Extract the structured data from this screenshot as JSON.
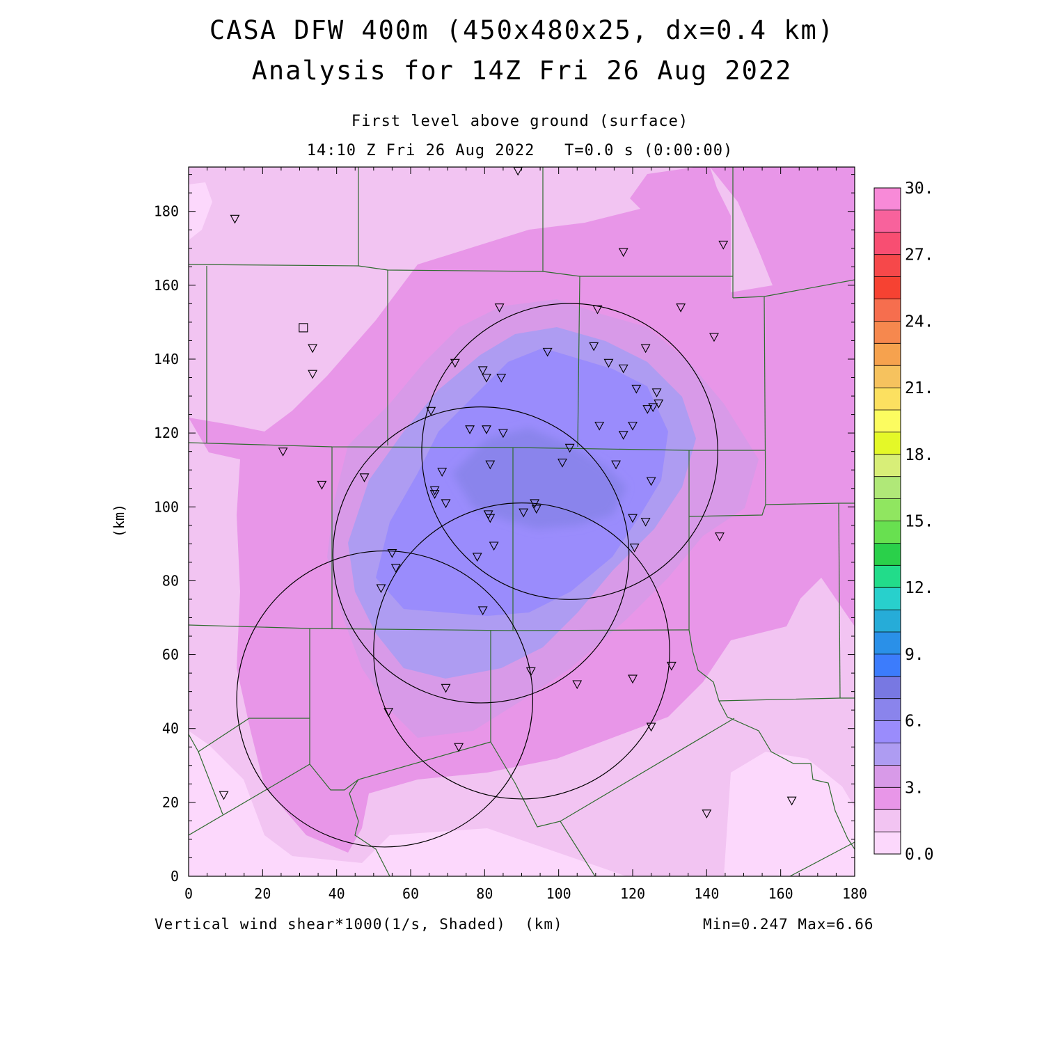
{
  "title": {
    "line1": "CASA DFW 400m (450x480x25, dx=0.4 km)",
    "line2": "Analysis for 14Z Fri 26 Aug 2022"
  },
  "subtitle": {
    "line1": "First level above ground (surface)",
    "line2": "14:10 Z Fri 26 Aug 2022   T=0.0 s (0:00:00)"
  },
  "footer": {
    "field": "Vertical wind shear*1000(1/s, Shaded)  (km)",
    "range": "Min=0.247 Max=6.66"
  },
  "axes": {
    "ylabel": "(km)",
    "x_ticks": [
      "0",
      "20",
      "40",
      "60",
      "80",
      "100",
      "120",
      "140",
      "160",
      "180"
    ],
    "y_ticks": [
      "0",
      "20",
      "40",
      "60",
      "80",
      "100",
      "120",
      "140",
      "160",
      "180"
    ],
    "xlim": [
      0,
      180
    ],
    "ylim": [
      0,
      192
    ]
  },
  "colorbar": {
    "labels": [
      "0.0",
      "3.",
      "6.",
      "9.",
      "12.",
      "15.",
      "18.",
      "21.",
      "24.",
      "27.",
      "30."
    ],
    "levels": [
      0,
      1,
      2,
      3,
      4,
      5,
      6,
      7,
      8,
      9,
      10,
      11,
      12,
      13,
      14,
      15,
      16,
      17,
      18,
      19,
      20,
      21,
      22,
      23,
      24,
      25,
      26,
      27,
      28,
      29,
      30
    ],
    "colors": [
      "#fcd8fc",
      "#f2c4f2",
      "#e896e8",
      "#d89ae8",
      "#ae9cf2",
      "#9a8cfc",
      "#8a84ec",
      "#7878e2",
      "#3c7cfc",
      "#2a90e8",
      "#26acd8",
      "#28d0cc",
      "#22dc8a",
      "#2ad04a",
      "#68e050",
      "#90e660",
      "#b0e878",
      "#d8ee78",
      "#e4f828",
      "#fcfc60",
      "#fce060",
      "#f6c25e",
      "#f6a24e",
      "#f6884e",
      "#f66e4e",
      "#f64232",
      "#f6484a",
      "#f84e72",
      "#f8629c",
      "#f88ad8"
    ]
  },
  "map": {
    "radar_sites": [
      {
        "x": 103,
        "y": 115,
        "r": 40
      },
      {
        "x": 79,
        "y": 87,
        "r": 40
      },
      {
        "x": 90,
        "y": 61,
        "r": 40
      },
      {
        "x": 53,
        "y": 48,
        "r": 40
      }
    ],
    "station_square": {
      "x": 31,
      "y": 148.5
    },
    "stations": [
      [
        12.5,
        178
      ],
      [
        89,
        191
      ],
      [
        117.5,
        169
      ],
      [
        144.5,
        171
      ],
      [
        84,
        154
      ],
      [
        110.5,
        153.5
      ],
      [
        133,
        154
      ],
      [
        142,
        146
      ],
      [
        33.5,
        143
      ],
      [
        33.5,
        136
      ],
      [
        72,
        139
      ],
      [
        79.5,
        137
      ],
      [
        80.5,
        135
      ],
      [
        84.5,
        135
      ],
      [
        97,
        142
      ],
      [
        109.5,
        143.5
      ],
      [
        113.5,
        139
      ],
      [
        117.5,
        137.5
      ],
      [
        123.5,
        143
      ],
      [
        121,
        132
      ],
      [
        126.5,
        131
      ],
      [
        127,
        128
      ],
      [
        125.5,
        127
      ],
      [
        124,
        126.5
      ],
      [
        65.5,
        126
      ],
      [
        76,
        121
      ],
      [
        80.5,
        121
      ],
      [
        85,
        120
      ],
      [
        111,
        122
      ],
      [
        117.5,
        119.5
      ],
      [
        120,
        122
      ],
      [
        25.5,
        115
      ],
      [
        103,
        116
      ],
      [
        101,
        112
      ],
      [
        81.5,
        111.5
      ],
      [
        115.5,
        111.5
      ],
      [
        125,
        107
      ],
      [
        36,
        106
      ],
      [
        47.5,
        108
      ],
      [
        68.5,
        109.5
      ],
      [
        66.5,
        104.5
      ],
      [
        66.5,
        103.5
      ],
      [
        69.5,
        101
      ],
      [
        93.5,
        101
      ],
      [
        94,
        99.5
      ],
      [
        90.5,
        98.5
      ],
      [
        81,
        98
      ],
      [
        81.5,
        97
      ],
      [
        120,
        97
      ],
      [
        123.5,
        96
      ],
      [
        143.5,
        92
      ],
      [
        82.5,
        89.5
      ],
      [
        120.5,
        89
      ],
      [
        78,
        86.5
      ],
      [
        55,
        87.5
      ],
      [
        56,
        83.5
      ],
      [
        52,
        78
      ],
      [
        79.5,
        72
      ],
      [
        92.5,
        55.5
      ],
      [
        130.5,
        57
      ],
      [
        120,
        53.5
      ],
      [
        105,
        52
      ],
      [
        69.5,
        51
      ],
      [
        54,
        44.5
      ],
      [
        125,
        40.5
      ],
      [
        73,
        35
      ],
      [
        9.5,
        22
      ],
      [
        140,
        17
      ],
      [
        163,
        20.5
      ]
    ]
  }
}
